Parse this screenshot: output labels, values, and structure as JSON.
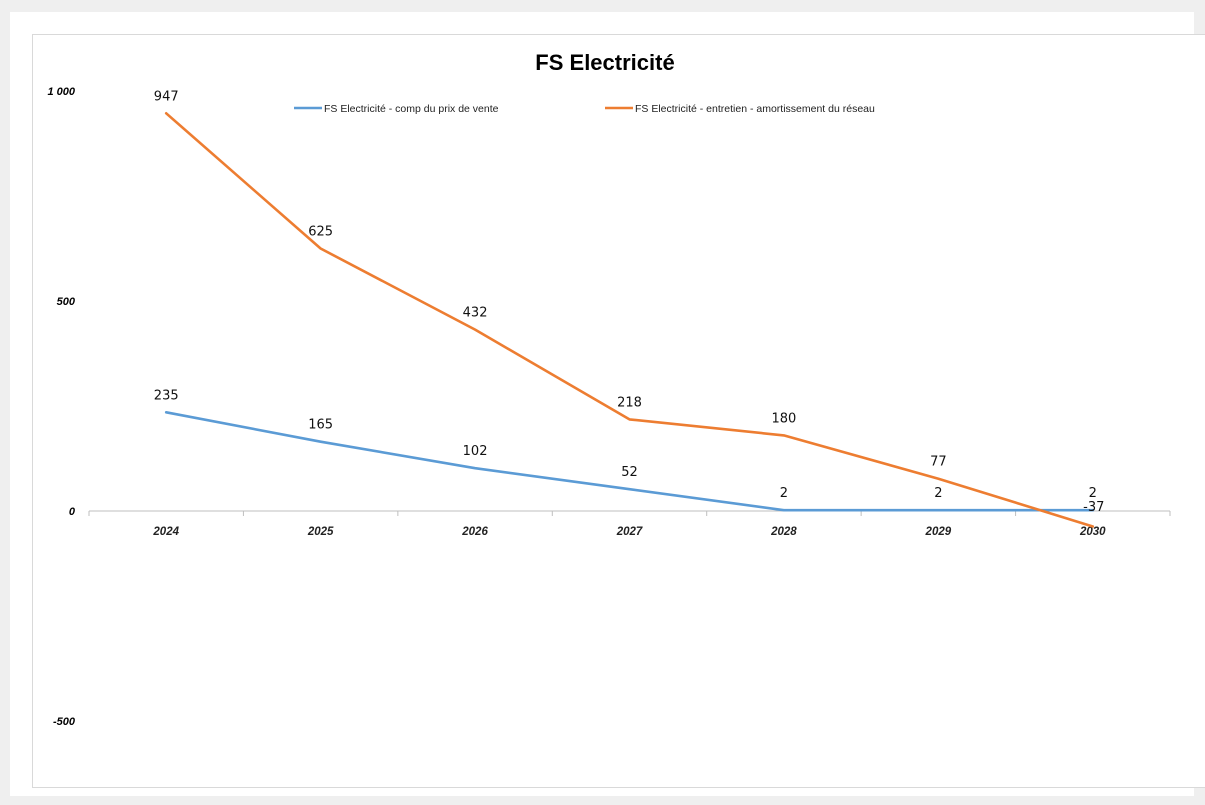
{
  "chart_data": {
    "type": "line",
    "title": "FS Electricité",
    "xlabel": "",
    "ylabel": "",
    "categories": [
      "2024",
      "2025",
      "2026",
      "2027",
      "2028",
      "2029",
      "2030"
    ],
    "ylim": [
      -500,
      1000
    ],
    "yticks": [
      1000,
      500,
      0,
      -500
    ],
    "ytick_labels": [
      "1 000",
      "500",
      "0",
      "-500"
    ],
    "grid": false,
    "legend_position": "top",
    "series": [
      {
        "name": "FS Electricité - comp du prix de vente",
        "color": "#5b9bd5",
        "values": [
          235,
          165,
          102,
          52,
          2,
          2,
          2
        ]
      },
      {
        "name": "FS Electricité - entretien - amortissement du réseau",
        "color": "#ed7d31",
        "values": [
          947,
          625,
          432,
          218,
          180,
          77,
          -37
        ]
      }
    ]
  }
}
